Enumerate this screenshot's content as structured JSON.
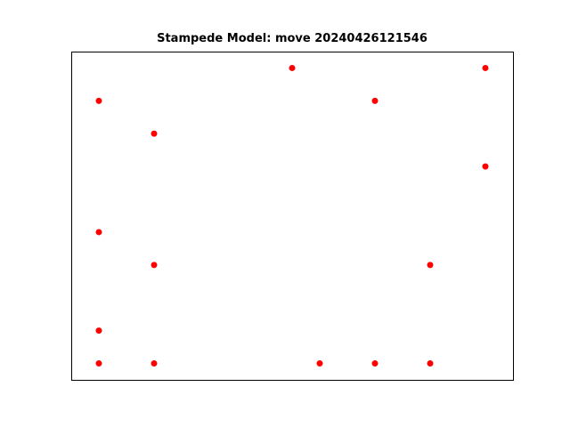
{
  "chart_data": {
    "type": "scatter",
    "title": "Stampede Model: move 20240426121546",
    "xlabel": "",
    "ylabel": "",
    "axes_visible": false,
    "grid": false,
    "marker_color": "#ff0000",
    "xlim": [
      0,
      8
    ],
    "ylim": [
      0,
      10
    ],
    "points": [
      {
        "x": 4,
        "y": 9.5
      },
      {
        "x": 7.5,
        "y": 9.5
      },
      {
        "x": 0.5,
        "y": 8.5
      },
      {
        "x": 5.5,
        "y": 8.5
      },
      {
        "x": 1.5,
        "y": 7.5
      },
      {
        "x": 7.5,
        "y": 6.5
      },
      {
        "x": 0.5,
        "y": 4.5
      },
      {
        "x": 1.5,
        "y": 3.5
      },
      {
        "x": 6.5,
        "y": 3.5
      },
      {
        "x": 0.5,
        "y": 1.5
      },
      {
        "x": 0.5,
        "y": 0.5
      },
      {
        "x": 1.5,
        "y": 0.5
      },
      {
        "x": 4.5,
        "y": 0.5
      },
      {
        "x": 5.5,
        "y": 0.5
      },
      {
        "x": 6.5,
        "y": 0.5
      }
    ]
  }
}
